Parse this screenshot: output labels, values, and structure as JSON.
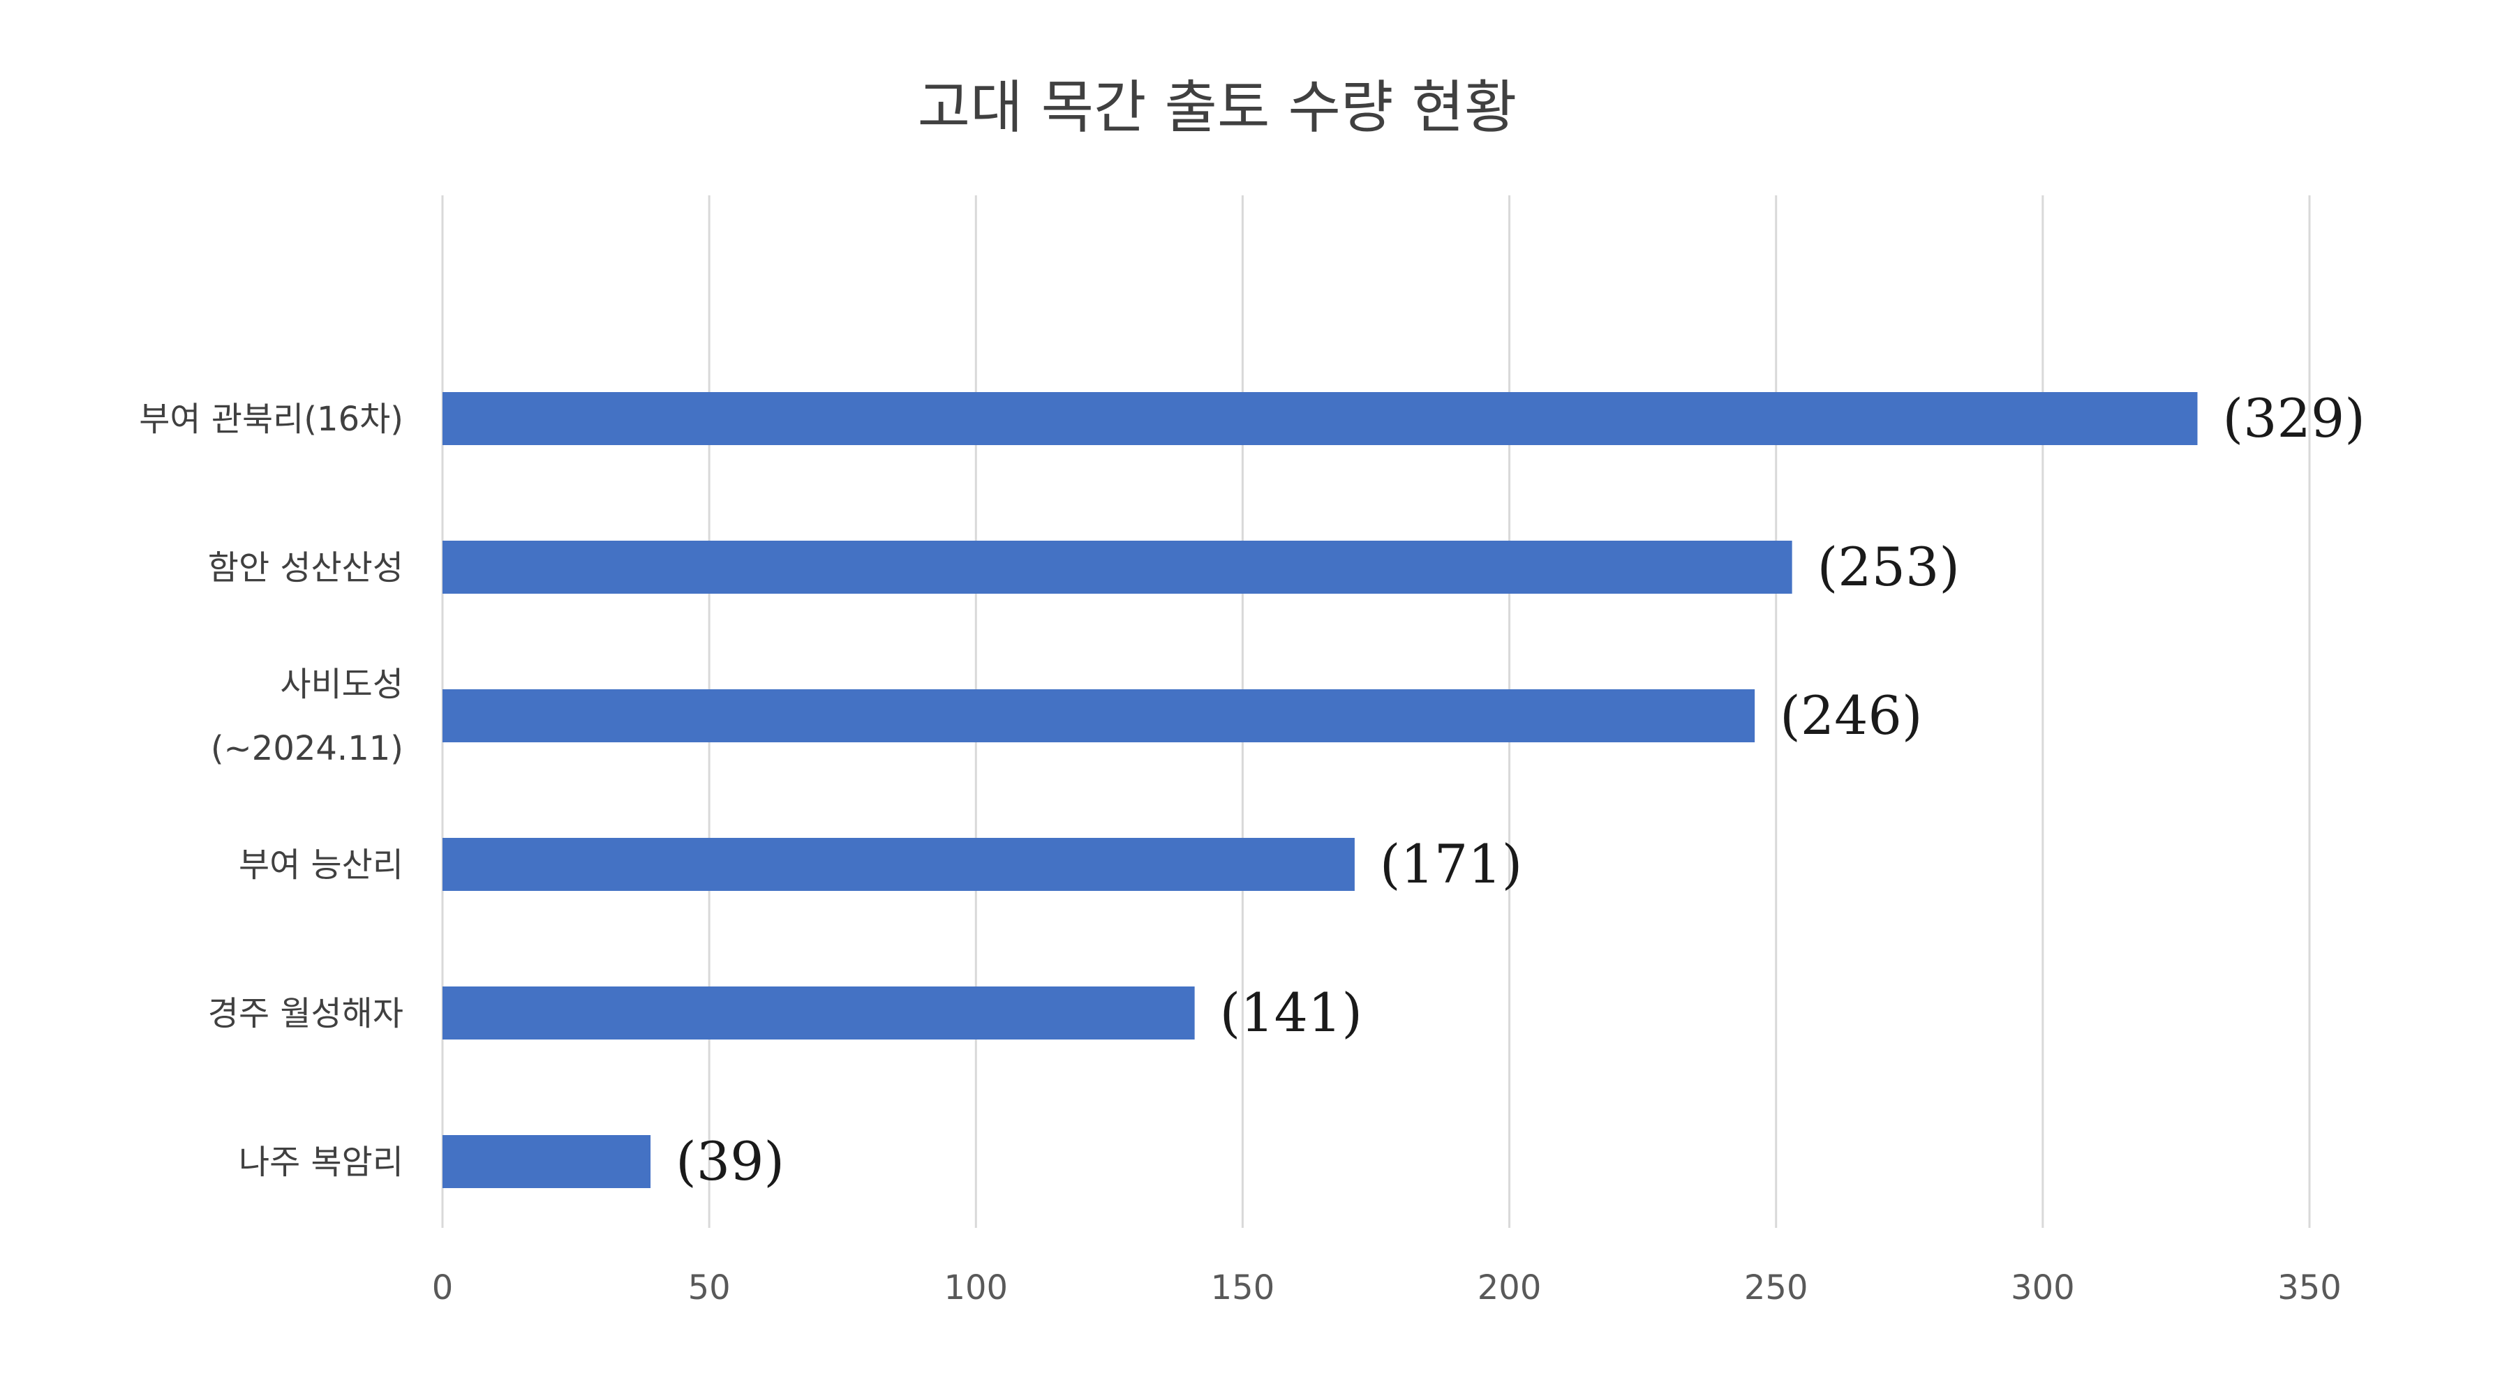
{
  "chart_data": {
    "type": "bar",
    "orientation": "horizontal",
    "title": "고대 목간 출토 수량 현황",
    "xlabel": "",
    "ylabel": "",
    "xlim": [
      0,
      350
    ],
    "ticks": [
      0,
      50,
      100,
      150,
      200,
      250,
      300,
      350
    ],
    "grid": true,
    "bar_color": "#4472C4",
    "categories": [
      [
        "부여 관북리(16차)"
      ],
      [
        "함안 성산산성"
      ],
      [
        "사비도성",
        "(~2024.11)"
      ],
      [
        "부여 능산리"
      ],
      [
        "경주 월성해자"
      ],
      [
        "나주 복암리"
      ]
    ],
    "values": [
      329,
      253,
      246,
      171,
      141,
      39
    ],
    "data_labels": [
      "(329)",
      "(253)",
      "(246)",
      "(171)",
      "(141)",
      "(39)"
    ]
  }
}
